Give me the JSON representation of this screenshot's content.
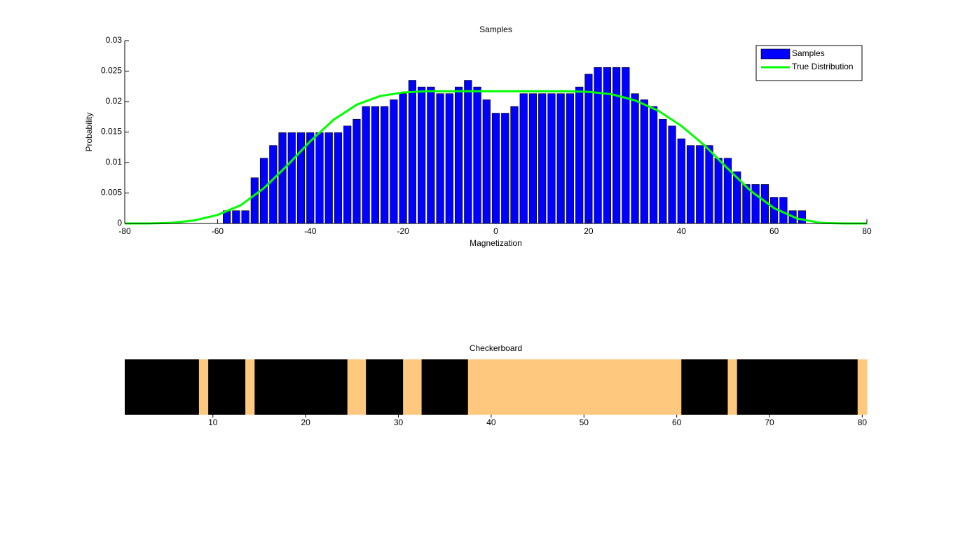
{
  "chart_data": [
    {
      "type": "histogram",
      "title": "Samples",
      "xlabel": "Magnetization",
      "ylabel": "Probability",
      "xlim": [
        -80,
        80
      ],
      "ylim": [
        0,
        0.03
      ],
      "xticks": [
        -80,
        -60,
        -40,
        -20,
        0,
        20,
        40,
        60,
        80
      ],
      "yticks": [
        0,
        0.005,
        0.01,
        0.015,
        0.02,
        0.025,
        0.03
      ],
      "legend": "upper right",
      "series": [
        {
          "name": "Samples",
          "type": "histogram",
          "color": "#0000ff",
          "bins": [
            -59,
            -57,
            -55,
            -53,
            -51,
            -49,
            -47,
            -45,
            -43,
            -41,
            -39,
            -37,
            -35,
            -33,
            -31,
            -29,
            -27,
            -25,
            -23,
            -21,
            -19,
            -17,
            -15,
            -13,
            -11,
            -9,
            -7,
            -5,
            -3,
            -1,
            1,
            3,
            5,
            7,
            9,
            11,
            13,
            15,
            17,
            19,
            21,
            23,
            25,
            27,
            29,
            31,
            33,
            35,
            37,
            39,
            41,
            43,
            45,
            47,
            49,
            51,
            53,
            55,
            57,
            59,
            61,
            63,
            65,
            67
          ],
          "values": [
            0.0021,
            0.0021,
            0.0021,
            0.0075,
            0.0107,
            0.0128,
            0.0149,
            0.0149,
            0.0149,
            0.0149,
            0.0149,
            0.0149,
            0.0149,
            0.016,
            0.0171,
            0.0192,
            0.0192,
            0.0192,
            0.0203,
            0.0213,
            0.0235,
            0.0224,
            0.0224,
            0.0213,
            0.0213,
            0.0224,
            0.0235,
            0.0224,
            0.0203,
            0.0181,
            0.0181,
            0.0192,
            0.0213,
            0.0213,
            0.0213,
            0.0213,
            0.0213,
            0.0213,
            0.0224,
            0.0245,
            0.0256,
            0.0256,
            0.0256,
            0.0256,
            0.0213,
            0.0203,
            0.0192,
            0.0171,
            0.016,
            0.0139,
            0.0128,
            0.0128,
            0.0128,
            0.0107,
            0.0107,
            0.0085,
            0.0064,
            0.0064,
            0.0064,
            0.0043,
            0.0043,
            0.0021,
            0.0021
          ]
        },
        {
          "name": "True Distribution",
          "type": "line",
          "color": "#00ff00",
          "x": [
            -80,
            -75,
            -70,
            -65,
            -60,
            -55,
            -50,
            -45,
            -40,
            -35,
            -30,
            -25,
            -20,
            -15,
            -10,
            -5,
            0,
            5,
            10,
            15,
            20,
            25,
            30,
            35,
            40,
            45,
            50,
            55,
            60,
            65,
            70,
            75,
            80
          ],
          "values": [
            0,
            0,
            0.0001,
            0.0005,
            0.0014,
            0.003,
            0.0058,
            0.0095,
            0.0135,
            0.017,
            0.0195,
            0.0209,
            0.0215,
            0.0217,
            0.0217,
            0.0217,
            0.0217,
            0.0217,
            0.0217,
            0.0217,
            0.0216,
            0.0212,
            0.0202,
            0.0185,
            0.016,
            0.0128,
            0.009,
            0.0053,
            0.0025,
            0.0008,
            0.0001,
            0,
            0
          ]
        }
      ]
    },
    {
      "type": "heatmap",
      "title": "Checkerboard",
      "xlim": [
        0.5,
        80.5
      ],
      "xticks": [
        10,
        20,
        30,
        40,
        50,
        60,
        70,
        80
      ],
      "colors": [
        "#000000",
        "#ffc87f"
      ],
      "clim": [
        -1,
        1
      ],
      "values": [
        -1,
        -1,
        -1,
        -1,
        -1,
        -1,
        -1,
        -1,
        1,
        -1,
        -1,
        -1,
        -1,
        1,
        -1,
        -1,
        -1,
        -1,
        -1,
        -1,
        -1,
        -1,
        -1,
        -1,
        1,
        1,
        -1,
        -1,
        -1,
        -1,
        1,
        1,
        -1,
        -1,
        -1,
        -1,
        -1,
        1,
        1,
        1,
        1,
        1,
        1,
        1,
        1,
        1,
        1,
        1,
        1,
        1,
        1,
        1,
        1,
        1,
        1,
        1,
        1,
        1,
        1,
        1,
        -1,
        -1,
        -1,
        -1,
        -1,
        1,
        -1,
        -1,
        -1,
        -1,
        -1,
        -1,
        -1,
        -1,
        -1,
        -1,
        -1,
        -1,
        -1,
        1
      ]
    }
  ]
}
